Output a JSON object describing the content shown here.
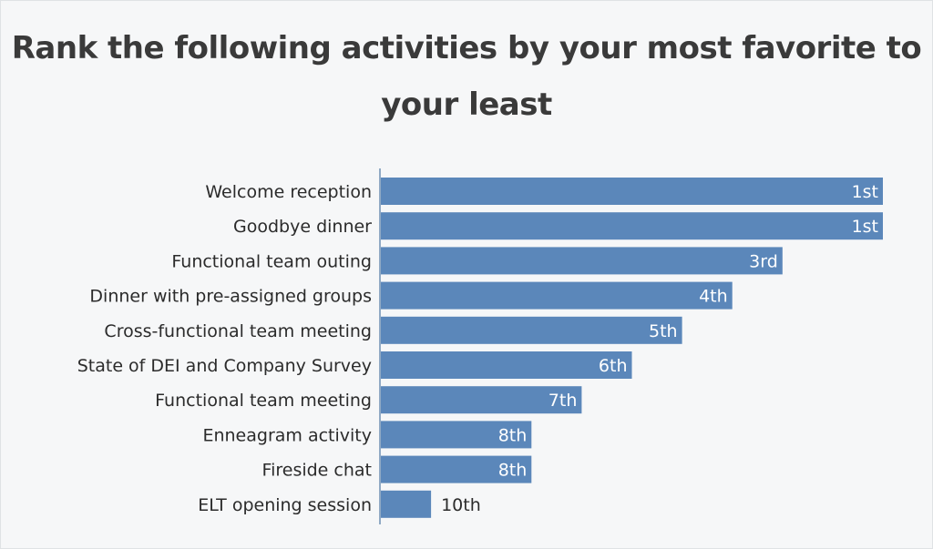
{
  "chart_data": {
    "type": "bar",
    "orientation": "horizontal",
    "title": "Rank the following activities by your most favorite to your least",
    "categories": [
      "Welcome reception",
      "Goodbye dinner",
      "Functional team outing",
      "Dinner with pre-assigned groups",
      "Cross-functional team meeting",
      "State of DEI and Company Survey",
      "Functional team meeting",
      "Enneagram activity",
      "Fireside chat",
      "ELT opening session"
    ],
    "values": [
      10,
      10,
      8,
      7,
      6,
      5,
      4,
      3,
      3,
      1
    ],
    "data_labels": [
      "1st",
      "1st",
      "3rd",
      "4th",
      "5th",
      "6th",
      "7th",
      "8th",
      "8th",
      "10th"
    ],
    "xlim": [
      0,
      10
    ],
    "grid": false,
    "bar_color": "#5b87ba"
  }
}
